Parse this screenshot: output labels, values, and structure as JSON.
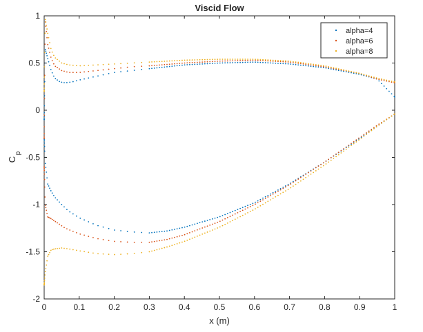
{
  "chart_data": {
    "type": "scatter",
    "title": "Viscid Flow",
    "xlabel": "x (m)",
    "ylabel": "C",
    "ylabel_subscript": "p",
    "xlim": [
      0,
      1
    ],
    "ylim": [
      -2,
      1
    ],
    "x_ticks": [
      0,
      0.1,
      0.2,
      0.3,
      0.4,
      0.5,
      0.6,
      0.7,
      0.8,
      0.9,
      1
    ],
    "x_tick_labels": [
      "0",
      "0.1",
      "0.2",
      "0.3",
      "0.4",
      "0.5",
      "0.6",
      "0.7",
      "0.8",
      "0.9",
      "1"
    ],
    "y_ticks": [
      1,
      0.5,
      0,
      -0.5,
      -1,
      -1.5,
      -2
    ],
    "y_tick_labels": [
      "1",
      "0.5",
      "0",
      "-0.5",
      "-1",
      "-1.5",
      "-2"
    ],
    "grid": false,
    "legend_position": "top-right",
    "series": [
      {
        "name": "alpha=4",
        "color": "#0072BD",
        "upper_surface": {
          "x": [
            0.0,
            0.003,
            0.01,
            0.02,
            0.03,
            0.045,
            0.06,
            0.08,
            0.1,
            0.15,
            0.2,
            0.25,
            0.3,
            0.4,
            0.5,
            0.6,
            0.7,
            0.8,
            0.9,
            0.95,
            1.0
          ],
          "y": [
            -0.1,
            0.65,
            0.55,
            0.42,
            0.34,
            0.3,
            0.29,
            0.3,
            0.32,
            0.36,
            0.4,
            0.42,
            0.44,
            0.48,
            0.5,
            0.51,
            0.49,
            0.45,
            0.38,
            0.33,
            0.14
          ]
        },
        "lower_surface": {
          "x": [
            0.0,
            0.003,
            0.01,
            0.02,
            0.03,
            0.05,
            0.07,
            0.1,
            0.15,
            0.2,
            0.25,
            0.3,
            0.35,
            0.4,
            0.5,
            0.6,
            0.7,
            0.8,
            0.9,
            0.95,
            1.0
          ],
          "y": [
            -0.3,
            -0.55,
            -0.78,
            -0.86,
            -0.92,
            -1.0,
            -1.07,
            -1.14,
            -1.22,
            -1.27,
            -1.29,
            -1.3,
            -1.28,
            -1.24,
            -1.13,
            -0.98,
            -0.78,
            -0.55,
            -0.3,
            -0.17,
            -0.04
          ]
        }
      },
      {
        "name": "alpha=6",
        "color": "#D95319",
        "upper_surface": {
          "x": [
            0.0,
            0.003,
            0.01,
            0.02,
            0.03,
            0.05,
            0.07,
            0.1,
            0.15,
            0.2,
            0.25,
            0.3,
            0.4,
            0.5,
            0.6,
            0.7,
            0.8,
            0.9,
            0.95,
            1.0
          ],
          "y": [
            -0.3,
            0.95,
            0.7,
            0.55,
            0.47,
            0.42,
            0.4,
            0.4,
            0.42,
            0.44,
            0.46,
            0.47,
            0.5,
            0.52,
            0.53,
            0.51,
            0.46,
            0.39,
            0.33,
            0.29
          ]
        },
        "lower_surface": {
          "x": [
            0.0,
            0.003,
            0.01,
            0.02,
            0.04,
            0.06,
            0.1,
            0.15,
            0.2,
            0.25,
            0.3,
            0.35,
            0.4,
            0.5,
            0.6,
            0.7,
            0.8,
            0.9,
            0.95,
            1.0
          ],
          "y": [
            -0.6,
            -1.0,
            -1.13,
            -1.15,
            -1.2,
            -1.25,
            -1.31,
            -1.36,
            -1.39,
            -1.4,
            -1.4,
            -1.37,
            -1.32,
            -1.18,
            -1.0,
            -0.79,
            -0.55,
            -0.29,
            -0.16,
            -0.04
          ]
        }
      },
      {
        "name": "alpha=8",
        "color": "#EDB120",
        "upper_surface": {
          "x": [
            0.0,
            0.003,
            0.01,
            0.02,
            0.03,
            0.05,
            0.07,
            0.1,
            0.15,
            0.2,
            0.25,
            0.3,
            0.4,
            0.5,
            0.6,
            0.7,
            0.8,
            0.9,
            0.95,
            1.0
          ],
          "y": [
            0.2,
            0.97,
            0.82,
            0.64,
            0.56,
            0.5,
            0.48,
            0.47,
            0.48,
            0.49,
            0.5,
            0.51,
            0.53,
            0.54,
            0.54,
            0.52,
            0.47,
            0.39,
            0.34,
            0.3
          ]
        },
        "lower_surface": {
          "x": [
            0.0,
            0.003,
            0.01,
            0.02,
            0.03,
            0.05,
            0.07,
            0.1,
            0.15,
            0.2,
            0.25,
            0.3,
            0.35,
            0.4,
            0.5,
            0.6,
            0.7,
            0.8,
            0.9,
            0.95,
            1.0
          ],
          "y": [
            -1.85,
            -1.72,
            -1.55,
            -1.48,
            -1.47,
            -1.46,
            -1.47,
            -1.49,
            -1.52,
            -1.53,
            -1.52,
            -1.5,
            -1.45,
            -1.39,
            -1.24,
            -1.05,
            -0.83,
            -0.58,
            -0.31,
            -0.17,
            -0.04
          ]
        }
      }
    ]
  }
}
